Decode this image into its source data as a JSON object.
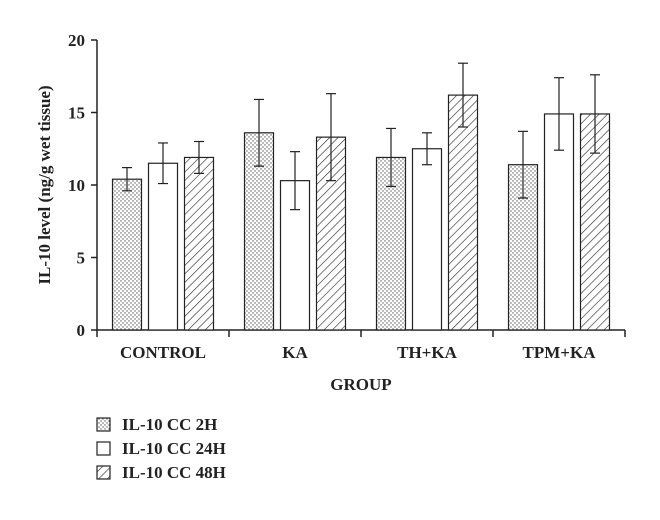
{
  "chart_data": {
    "type": "bar",
    "title": "",
    "xlabel": "GROUP",
    "ylabel": "IL-10 level (ng/g wet tissue)",
    "ylim": [
      0,
      20
    ],
    "yticks": [
      0,
      5,
      10,
      15,
      20
    ],
    "grid": false,
    "legend_position": "bottom-left",
    "categories": [
      "CONTROL",
      "KA",
      "TH+KA",
      "TPM+KA"
    ],
    "series": [
      {
        "name": "IL-10 CC 2H",
        "pattern": "dots",
        "values": [
          10.4,
          13.6,
          11.9,
          11.4
        ],
        "errors": [
          0.8,
          2.3,
          2.0,
          2.3
        ]
      },
      {
        "name": "IL-10 CC 24H",
        "pattern": "none",
        "values": [
          11.5,
          10.3,
          12.5,
          14.9
        ],
        "errors": [
          1.4,
          2.0,
          1.1,
          2.5
        ]
      },
      {
        "name": "IL-10 CC 48H",
        "pattern": "hatch",
        "values": [
          11.9,
          13.3,
          16.2,
          14.9
        ],
        "errors": [
          1.1,
          3.0,
          2.2,
          2.7
        ]
      }
    ],
    "colors": {
      "ink": "#222222",
      "fill": "#ffffff"
    }
  }
}
